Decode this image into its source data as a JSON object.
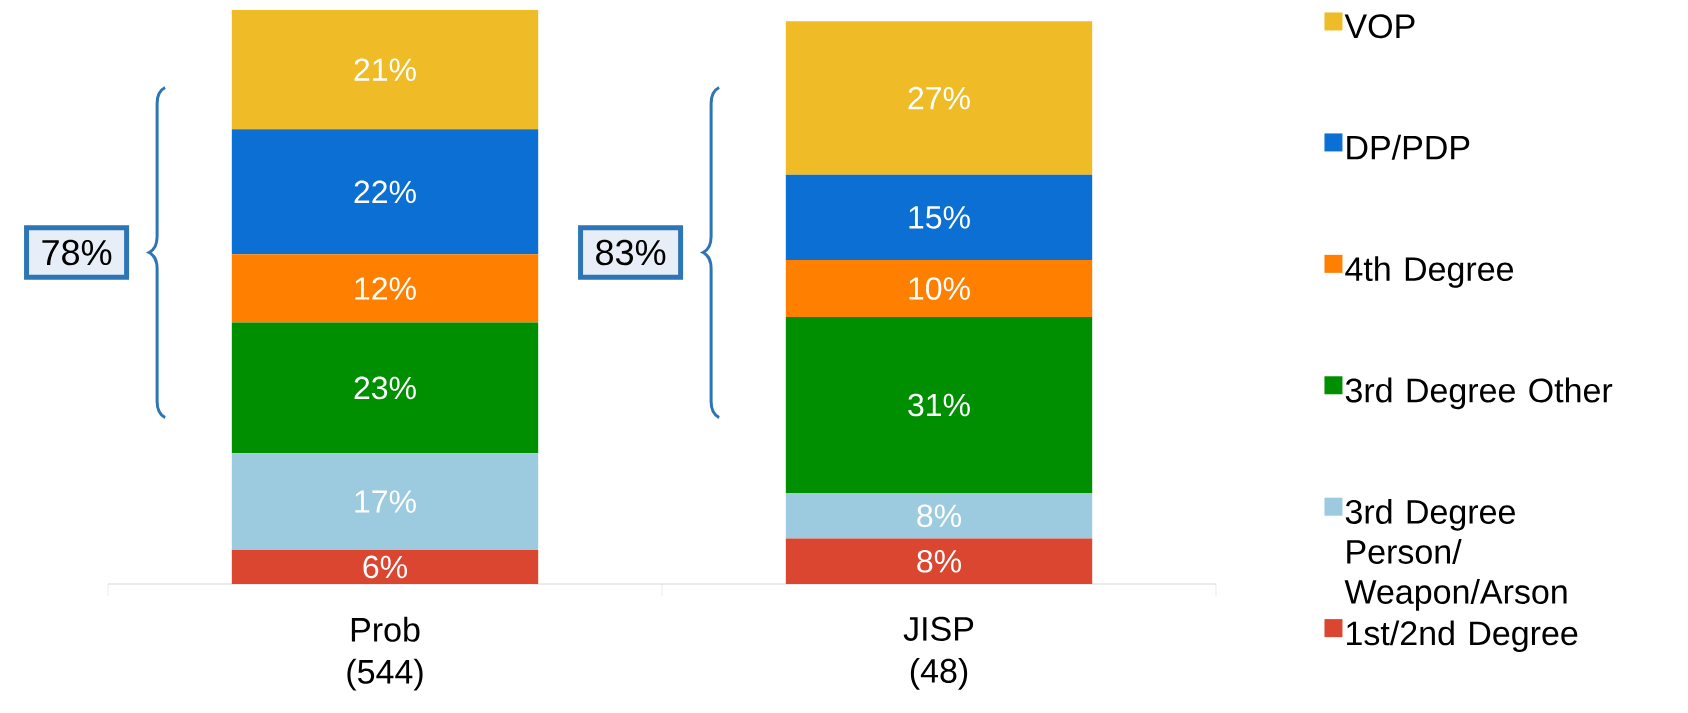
{
  "chart_data": {
    "type": "bar",
    "stacked": true,
    "legend": "right",
    "categories": [
      "Prob (544)",
      "JISP (48)"
    ],
    "series": [
      {
        "name": "1st/2nd Degree",
        "color": "#db4630",
        "values": [
          6,
          8
        ],
        "value_labels": [
          "6%",
          "8%"
        ]
      },
      {
        "name": "3rd Degree Person/ Weapon/Arson",
        "color": "#9ccadf",
        "values": [
          17,
          8
        ],
        "value_labels": [
          "17%",
          "8%"
        ]
      },
      {
        "name": "3rd Degree Other",
        "color": "#008f00",
        "values": [
          23,
          31
        ],
        "value_labels": [
          "23%",
          "31%"
        ]
      },
      {
        "name": "4th Degree",
        "color": "#ff7f00",
        "values": [
          12,
          10
        ],
        "value_labels": [
          "12%",
          "10%"
        ]
      },
      {
        "name": "DP/PDP",
        "color": "#0b6fd3",
        "values": [
          22,
          15
        ],
        "value_labels": [
          "22%",
          "15%"
        ]
      },
      {
        "name": "VOP",
        "color": "#efbb26",
        "values": [
          21,
          27
        ],
        "value_labels": [
          "21%",
          "27%"
        ]
      }
    ],
    "annotations": [
      "78%",
      "83%"
    ]
  }
}
